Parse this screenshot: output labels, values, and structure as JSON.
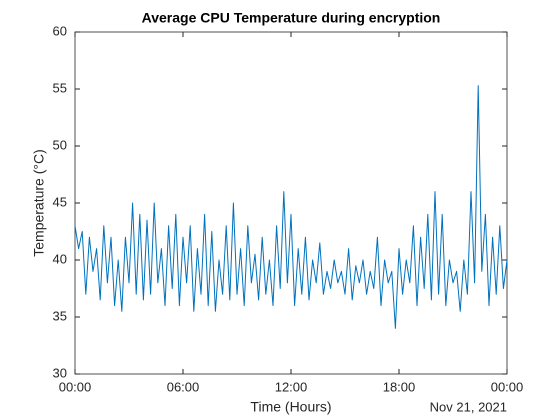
{
  "chart_data": {
    "type": "line",
    "title": "Average CPU Temperature during encryption",
    "x_label": "Time (Hours)",
    "y_label": "Temperature (°C)",
    "x_date_label": "Nov 21, 2021",
    "x": [
      0,
      0.2,
      0.4,
      0.6,
      0.8,
      1,
      1.2,
      1.4,
      1.6,
      1.8,
      2,
      2.2,
      2.4,
      2.6,
      2.8,
      3,
      3.2,
      3.4,
      3.6,
      3.8,
      4,
      4.2,
      4.4,
      4.6,
      4.8,
      5,
      5.2,
      5.4,
      5.6,
      5.8,
      6,
      6.2,
      6.4,
      6.6,
      6.8,
      7,
      7.2,
      7.4,
      7.6,
      7.8,
      8,
      8.2,
      8.4,
      8.6,
      8.8,
      9,
      9.2,
      9.4,
      9.6,
      9.8,
      10,
      10.2,
      10.4,
      10.6,
      10.8,
      11,
      11.2,
      11.4,
      11.6,
      11.8,
      12,
      12.2,
      12.4,
      12.6,
      12.8,
      13,
      13.2,
      13.4,
      13.6,
      13.8,
      14,
      14.2,
      14.4,
      14.6,
      14.8,
      15,
      15.2,
      15.4,
      15.6,
      15.8,
      16,
      16.2,
      16.4,
      16.6,
      16.8,
      17,
      17.2,
      17.4,
      17.6,
      17.8,
      18,
      18.2,
      18.4,
      18.6,
      18.8,
      19,
      19.2,
      19.4,
      19.6,
      19.8,
      20,
      20.2,
      20.4,
      20.6,
      20.8,
      21,
      21.2,
      21.4,
      21.6,
      21.8,
      22,
      22.2,
      22.4,
      22.6,
      22.8,
      23,
      23.2,
      23.4,
      23.6,
      23.8,
      24
    ],
    "series": [
      {
        "name": "Temperature",
        "color": "#0072bd",
        "values": [
          43,
          41,
          42.5,
          37,
          42,
          39,
          41,
          36.5,
          43,
          38,
          42,
          36,
          40,
          35.5,
          42,
          38,
          45,
          37,
          44,
          36.5,
          43.5,
          37,
          45,
          38,
          41,
          36,
          43,
          37.5,
          44,
          36,
          42,
          38,
          43,
          35.5,
          41,
          37,
          44,
          36,
          42.5,
          35.5,
          40,
          37,
          43,
          36.5,
          45,
          37,
          41,
          36,
          43,
          38,
          40.5,
          36.5,
          42,
          37,
          40,
          36,
          43,
          37.5,
          46,
          38,
          44,
          36,
          41,
          37,
          42,
          36.5,
          40,
          38,
          41.5,
          37,
          39,
          37.5,
          40,
          38,
          39,
          37,
          41,
          36.5,
          39.5,
          38,
          40,
          37,
          39,
          37.5,
          42,
          36,
          40,
          38,
          39,
          34,
          41,
          37,
          40,
          38,
          43,
          36,
          42,
          37.5,
          44,
          36.5,
          46,
          37,
          44,
          36,
          40,
          38,
          39,
          35.5,
          40,
          37,
          46,
          38,
          55.3,
          39,
          44,
          36,
          42,
          37,
          43,
          37.5,
          40
        ]
      }
    ],
    "xlim": [
      0,
      24
    ],
    "xticks": [
      {
        "value": 0,
        "label": "00:00"
      },
      {
        "value": 6,
        "label": "06:00"
      },
      {
        "value": 12,
        "label": "12:00"
      },
      {
        "value": 18,
        "label": "18:00"
      },
      {
        "value": 24,
        "label": "00:00"
      }
    ],
    "ylim": [
      30,
      60
    ],
    "yticks": [
      30,
      35,
      40,
      45,
      50,
      55,
      60
    ],
    "grid": false
  }
}
